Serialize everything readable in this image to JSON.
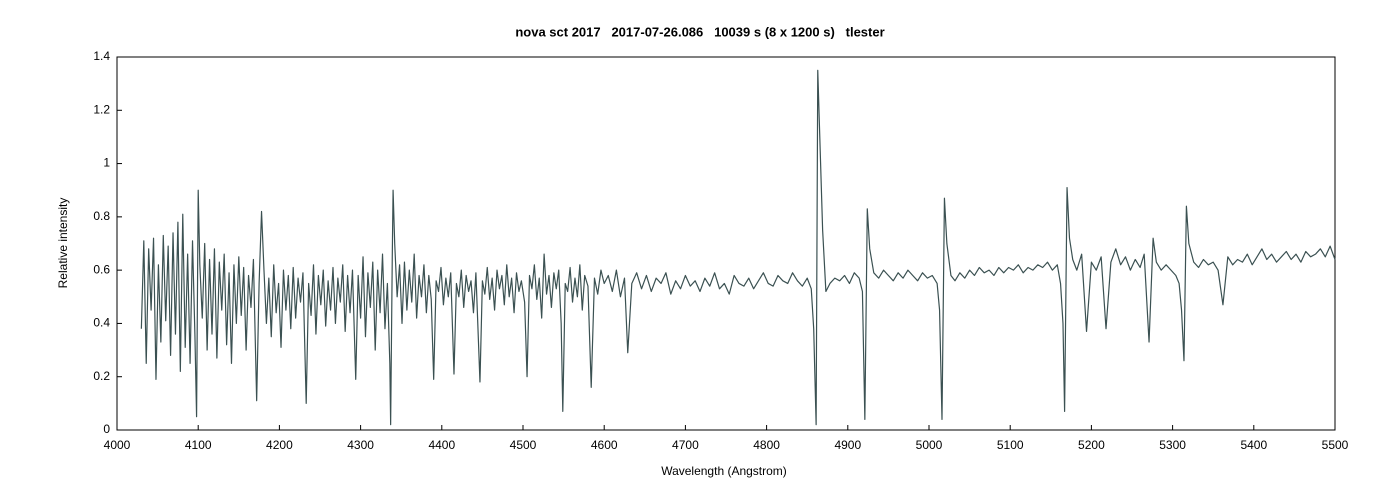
{
  "chart_data": {
    "type": "line",
    "title": "nova sct 2017   2017-07-26.086   10039 s (8 x 1200 s)   tlester",
    "x_label": "Wavelength (Angstrom)",
    "y_label": "Relative intensity",
    "color": "#3b5152",
    "xlim": [
      4000,
      5500
    ],
    "xticks": [
      4000,
      4100,
      4200,
      4300,
      4400,
      4500,
      4600,
      4700,
      4800,
      4900,
      5000,
      5100,
      5200,
      5300,
      5400,
      5500
    ],
    "ylim": [
      0,
      1.4
    ],
    "yticks": [
      0,
      0.2,
      0.4,
      0.6,
      0.8,
      1,
      1.2,
      1.4
    ],
    "grid": false,
    "x": [
      4030,
      4033,
      4036,
      4039,
      4042,
      4045,
      4048,
      4051,
      4054,
      4057,
      4060,
      4063,
      4066,
      4069,
      4072,
      4075,
      4078,
      4081,
      4084,
      4087,
      4090,
      4093,
      4096,
      4098,
      4100,
      4102,
      4105,
      4108,
      4111,
      4114,
      4117,
      4120,
      4123,
      4126,
      4129,
      4132,
      4135,
      4138,
      4141,
      4144,
      4147,
      4150,
      4153,
      4156,
      4159,
      4162,
      4165,
      4168,
      4172,
      4175,
      4178,
      4181,
      4184,
      4187,
      4190,
      4193,
      4196,
      4199,
      4202,
      4205,
      4208,
      4211,
      4214,
      4217,
      4220,
      4223,
      4226,
      4229,
      4233,
      4236,
      4239,
      4242,
      4245,
      4248,
      4251,
      4254,
      4257,
      4260,
      4263,
      4266,
      4269,
      4272,
      4275,
      4278,
      4281,
      4284,
      4287,
      4290,
      4294,
      4297,
      4300,
      4303,
      4306,
      4309,
      4312,
      4315,
      4318,
      4321,
      4324,
      4327,
      4330,
      4333,
      4336,
      4337,
      4339,
      4340,
      4342,
      4345,
      4348,
      4351,
      4354,
      4357,
      4360,
      4363,
      4366,
      4369,
      4372,
      4375,
      4378,
      4381,
      4384,
      4387,
      4390,
      4393,
      4396,
      4399,
      4402,
      4405,
      4408,
      4411,
      4415,
      4418,
      4421,
      4424,
      4427,
      4430,
      4433,
      4436,
      4439,
      4442,
      4447,
      4450,
      4453,
      4456,
      4459,
      4462,
      4465,
      4468,
      4471,
      4474,
      4477,
      4480,
      4483,
      4486,
      4489,
      4492,
      4495,
      4498,
      4502,
      4505,
      4508,
      4511,
      4514,
      4517,
      4520,
      4523,
      4526,
      4529,
      4532,
      4535,
      4538,
      4541,
      4544,
      4547,
      4549,
      4552,
      4555,
      4558,
      4561,
      4564,
      4567,
      4570,
      4573,
      4576,
      4580,
      4584,
      4588,
      4592,
      4596,
      4600,
      4605,
      4610,
      4615,
      4620,
      4625,
      4629,
      4634,
      4640,
      4646,
      4652,
      4658,
      4664,
      4670,
      4676,
      4682,
      4688,
      4694,
      4700,
      4706,
      4712,
      4718,
      4724,
      4730,
      4736,
      4742,
      4748,
      4754,
      4760,
      4766,
      4772,
      4778,
      4784,
      4790,
      4796,
      4802,
      4808,
      4814,
      4820,
      4826,
      4832,
      4838,
      4844,
      4850,
      4855,
      4858,
      4861,
      4863,
      4866,
      4869,
      4873,
      4878,
      4884,
      4890,
      4896,
      4902,
      4908,
      4914,
      4918,
      4921,
      4924,
      4927,
      4932,
      4938,
      4944,
      4950,
      4956,
      4962,
      4968,
      4974,
      4980,
      4986,
      4992,
      4998,
      5004,
      5010,
      5013,
      5016,
      5019,
      5022,
      5027,
      5032,
      5038,
      5044,
      5050,
      5056,
      5062,
      5068,
      5074,
      5080,
      5086,
      5092,
      5098,
      5104,
      5110,
      5116,
      5122,
      5128,
      5134,
      5140,
      5146,
      5152,
      5158,
      5162,
      5165,
      5167,
      5170,
      5173,
      5177,
      5182,
      5188,
      5194,
      5200,
      5206,
      5212,
      5218,
      5224,
      5230,
      5236,
      5242,
      5248,
      5254,
      5260,
      5265,
      5271,
      5276,
      5280,
      5286,
      5292,
      5298,
      5304,
      5308,
      5311,
      5314,
      5317,
      5320,
      5326,
      5332,
      5338,
      5344,
      5350,
      5356,
      5362,
      5368,
      5374,
      5380,
      5386,
      5392,
      5398,
      5404,
      5410,
      5416,
      5422,
      5428,
      5434,
      5440,
      5446,
      5452,
      5458,
      5464,
      5470,
      5476,
      5482,
      5488,
      5494,
      5500
    ],
    "values": [
      0.38,
      0.71,
      0.25,
      0.68,
      0.45,
      0.72,
      0.19,
      0.62,
      0.33,
      0.73,
      0.41,
      0.69,
      0.28,
      0.74,
      0.36,
      0.78,
      0.22,
      0.81,
      0.31,
      0.66,
      0.25,
      0.71,
      0.35,
      0.05,
      0.9,
      0.62,
      0.42,
      0.7,
      0.3,
      0.64,
      0.36,
      0.68,
      0.27,
      0.63,
      0.45,
      0.66,
      0.32,
      0.59,
      0.25,
      0.62,
      0.4,
      0.65,
      0.43,
      0.61,
      0.3,
      0.58,
      0.46,
      0.64,
      0.11,
      0.55,
      0.82,
      0.6,
      0.4,
      0.57,
      0.35,
      0.62,
      0.44,
      0.55,
      0.31,
      0.6,
      0.45,
      0.58,
      0.38,
      0.61,
      0.42,
      0.57,
      0.48,
      0.59,
      0.1,
      0.55,
      0.43,
      0.62,
      0.36,
      0.58,
      0.47,
      0.6,
      0.39,
      0.56,
      0.45,
      0.61,
      0.4,
      0.57,
      0.48,
      0.62,
      0.37,
      0.58,
      0.44,
      0.6,
      0.19,
      0.58,
      0.42,
      0.65,
      0.35,
      0.59,
      0.46,
      0.63,
      0.3,
      0.6,
      0.44,
      0.66,
      0.38,
      0.55,
      0.25,
      0.02,
      0.65,
      0.9,
      0.7,
      0.5,
      0.62,
      0.4,
      0.63,
      0.45,
      0.6,
      0.48,
      0.66,
      0.42,
      0.58,
      0.5,
      0.62,
      0.44,
      0.58,
      0.49,
      0.19,
      0.56,
      0.52,
      0.61,
      0.47,
      0.57,
      0.5,
      0.59,
      0.21,
      0.55,
      0.5,
      0.6,
      0.46,
      0.58,
      0.52,
      0.56,
      0.44,
      0.59,
      0.18,
      0.56,
      0.51,
      0.61,
      0.49,
      0.57,
      0.45,
      0.6,
      0.53,
      0.58,
      0.47,
      0.62,
      0.5,
      0.57,
      0.44,
      0.59,
      0.52,
      0.56,
      0.48,
      0.2,
      0.58,
      0.53,
      0.62,
      0.49,
      0.57,
      0.42,
      0.66,
      0.51,
      0.58,
      0.46,
      0.59,
      0.53,
      0.6,
      0.4,
      0.07,
      0.55,
      0.52,
      0.61,
      0.48,
      0.57,
      0.5,
      0.62,
      0.45,
      0.58,
      0.54,
      0.16,
      0.57,
      0.51,
      0.6,
      0.55,
      0.58,
      0.52,
      0.6,
      0.5,
      0.57,
      0.29,
      0.55,
      0.59,
      0.53,
      0.58,
      0.52,
      0.57,
      0.55,
      0.59,
      0.51,
      0.56,
      0.53,
      0.58,
      0.54,
      0.56,
      0.52,
      0.57,
      0.54,
      0.59,
      0.53,
      0.55,
      0.51,
      0.58,
      0.55,
      0.54,
      0.57,
      0.53,
      0.56,
      0.59,
      0.55,
      0.54,
      0.58,
      0.56,
      0.55,
      0.59,
      0.56,
      0.54,
      0.57,
      0.53,
      0.38,
      0.02,
      1.35,
      1.05,
      0.75,
      0.52,
      0.55,
      0.57,
      0.56,
      0.58,
      0.55,
      0.59,
      0.57,
      0.52,
      0.04,
      0.83,
      0.68,
      0.59,
      0.57,
      0.6,
      0.58,
      0.56,
      0.59,
      0.57,
      0.6,
      0.58,
      0.56,
      0.59,
      0.57,
      0.58,
      0.55,
      0.45,
      0.04,
      0.87,
      0.7,
      0.58,
      0.56,
      0.59,
      0.57,
      0.6,
      0.58,
      0.61,
      0.59,
      0.6,
      0.58,
      0.61,
      0.59,
      0.61,
      0.6,
      0.62,
      0.59,
      0.61,
      0.6,
      0.62,
      0.61,
      0.63,
      0.6,
      0.62,
      0.55,
      0.4,
      0.07,
      0.91,
      0.72,
      0.64,
      0.6,
      0.66,
      0.37,
      0.63,
      0.6,
      0.65,
      0.38,
      0.63,
      0.68,
      0.62,
      0.65,
      0.6,
      0.64,
      0.61,
      0.66,
      0.33,
      0.72,
      0.63,
      0.6,
      0.62,
      0.6,
      0.58,
      0.55,
      0.45,
      0.26,
      0.84,
      0.7,
      0.63,
      0.61,
      0.64,
      0.62,
      0.63,
      0.6,
      0.47,
      0.65,
      0.62,
      0.64,
      0.63,
      0.66,
      0.62,
      0.65,
      0.68,
      0.64,
      0.66,
      0.63,
      0.65,
      0.67,
      0.64,
      0.66,
      0.63,
      0.67,
      0.65,
      0.66,
      0.68,
      0.65,
      0.69,
      0.64
    ]
  }
}
